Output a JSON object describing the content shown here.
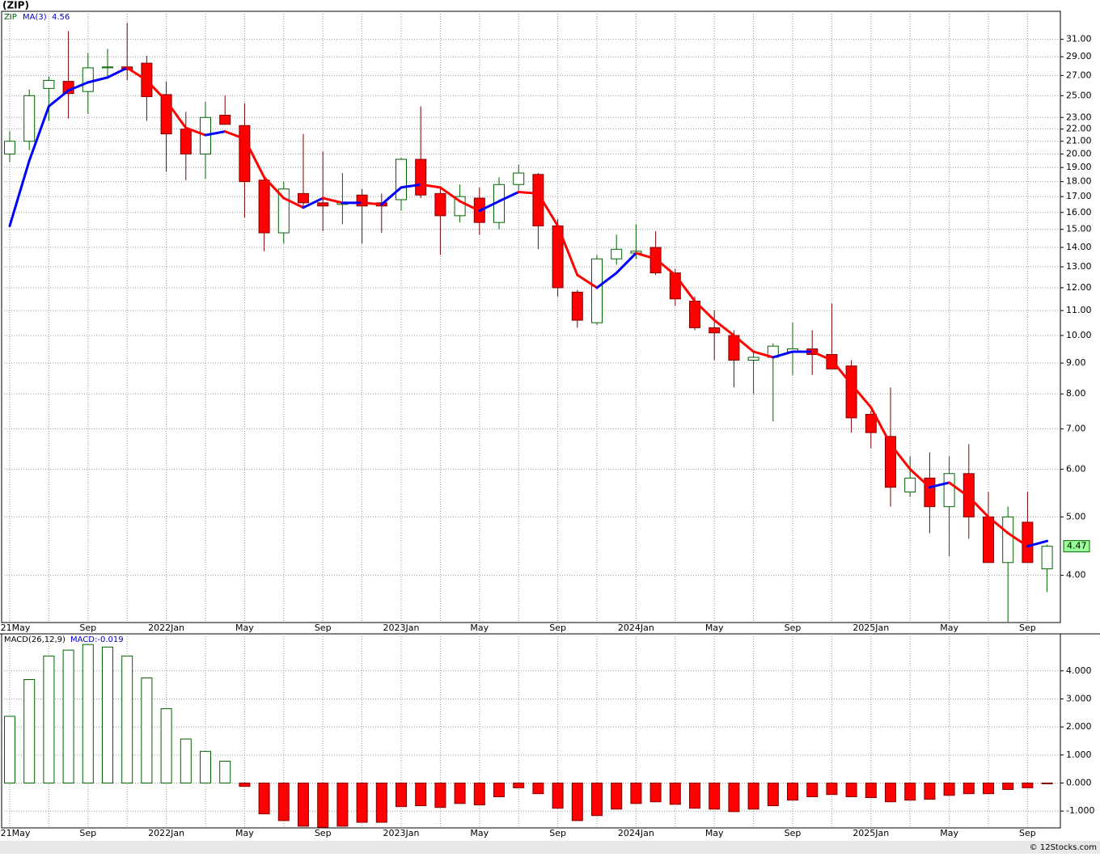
{
  "chart_data": [
    {
      "type": "candlestick",
      "title": "(ZIP)",
      "symbol": "ZIP",
      "ma_name": "MA(3)",
      "ma_current": 4.56,
      "categories": [
        "2021May",
        null,
        null,
        null,
        "Sep",
        null,
        null,
        null,
        "2022Jan",
        null,
        null,
        null,
        "May",
        null,
        null,
        null,
        "Sep",
        null,
        null,
        null,
        "2023Jan",
        null,
        null,
        null,
        "May",
        null,
        null,
        null,
        "Sep",
        null,
        null,
        null,
        "2024Jan",
        null,
        null,
        null,
        "May",
        null,
        null,
        null,
        "Sep",
        null,
        null,
        null,
        "2025Jan",
        null,
        null,
        null,
        "May",
        null,
        null,
        null,
        "Sep",
        null
      ],
      "open": [
        20.0,
        21.0,
        25.7,
        26.4,
        25.4,
        27.8,
        27.9,
        28.3,
        25.1,
        22.0,
        20.0,
        23.2,
        22.3,
        18.1,
        14.8,
        17.2,
        16.6,
        16.5,
        17.1,
        16.6,
        16.8,
        19.6,
        17.2,
        15.8,
        16.9,
        15.4,
        17.8,
        18.5,
        15.2,
        11.8,
        10.5,
        13.4,
        13.7,
        14.0,
        12.7,
        11.4,
        10.3,
        10.0,
        9.1,
        9.2,
        9.4,
        9.5,
        9.3,
        8.9,
        7.4,
        6.8,
        5.5,
        5.8,
        5.2,
        5.9,
        5.0,
        4.2,
        4.9,
        4.1
      ],
      "high": [
        21.8,
        25.6,
        26.9,
        32.0,
        29.4,
        29.9,
        33.0,
        29.1,
        26.4,
        23.5,
        24.4,
        25.0,
        24.3,
        18.3,
        18.0,
        21.6,
        20.2,
        18.6,
        17.5,
        17.2,
        19.7,
        24.0,
        17.6,
        17.8,
        17.6,
        18.3,
        19.2,
        18.6,
        15.6,
        11.9,
        13.6,
        14.7,
        15.3,
        14.9,
        12.9,
        11.6,
        11.0,
        10.2,
        9.4,
        9.7,
        10.5,
        10.2,
        11.3,
        9.1,
        7.5,
        8.2,
        6.3,
        6.4,
        6.3,
        6.6,
        5.5,
        5.2,
        5.5,
        4.5
      ],
      "low": [
        19.4,
        20.3,
        22.7,
        22.9,
        23.3,
        26.8,
        26.5,
        22.7,
        18.7,
        18.1,
        18.2,
        22.4,
        15.7,
        13.8,
        14.2,
        16.3,
        14.9,
        15.3,
        14.2,
        14.8,
        16.1,
        16.9,
        13.6,
        15.4,
        14.7,
        15.0,
        17.4,
        13.9,
        11.6,
        10.3,
        10.4,
        13.1,
        13.4,
        12.6,
        11.2,
        10.2,
        9.1,
        8.2,
        8.0,
        7.2,
        8.6,
        8.6,
        8.8,
        6.9,
        6.5,
        5.2,
        5.4,
        4.7,
        4.3,
        4.6,
        4.2,
        3.35,
        4.2,
        3.75
      ],
      "close": [
        21.0,
        25.0,
        26.5,
        25.2,
        27.8,
        27.9,
        27.6,
        24.9,
        21.6,
        20.0,
        23.0,
        22.4,
        18.0,
        14.8,
        17.5,
        16.6,
        16.4,
        16.6,
        16.4,
        16.4,
        19.6,
        17.1,
        15.8,
        17.0,
        15.4,
        17.8,
        18.6,
        15.2,
        12.0,
        10.6,
        13.4,
        13.9,
        13.8,
        12.7,
        11.5,
        10.3,
        10.1,
        9.1,
        9.2,
        9.6,
        9.5,
        9.3,
        8.8,
        7.3,
        6.9,
        5.6,
        5.8,
        5.2,
        5.9,
        5.0,
        4.2,
        5.0,
        4.2,
        4.47
      ],
      "ma": [
        15.2,
        19.5,
        24.0,
        25.5,
        26.3,
        26.8,
        27.8,
        26.5,
        24.5,
        22.1,
        21.5,
        21.8,
        21.2,
        18.3,
        16.9,
        16.3,
        16.9,
        16.6,
        16.6,
        16.5,
        17.6,
        17.8,
        17.6,
        16.7,
        16.1,
        16.7,
        17.3,
        17.2,
        15.2,
        12.6,
        12.0,
        12.7,
        13.7,
        13.4,
        12.6,
        11.4,
        10.6,
        10.0,
        9.4,
        9.2,
        9.4,
        9.4,
        9.1,
        8.3,
        7.6,
        6.6,
        6.0,
        5.6,
        5.7,
        5.4,
        5.0,
        4.7,
        4.47,
        4.56
      ],
      "last": {
        "value": 4.47,
        "label": "4.47"
      },
      "log_scale": true,
      "ylim": [
        3.34,
        34.5
      ],
      "yticks": [
        {
          "value": 4,
          "label": "4.00"
        },
        {
          "value": 5,
          "label": "5.00"
        },
        {
          "value": 6,
          "label": "6.00"
        },
        {
          "value": 7,
          "label": "7.00"
        },
        {
          "value": 8,
          "label": "8.00"
        },
        {
          "value": 9,
          "label": "9.00"
        },
        {
          "value": 10,
          "label": "10.00"
        },
        {
          "value": 11,
          "label": "11.00"
        },
        {
          "value": 12,
          "label": "12.00"
        },
        {
          "value": 13,
          "label": "13.00"
        },
        {
          "value": 14,
          "label": "14.00"
        },
        {
          "value": 15,
          "label": "15.00"
        },
        {
          "value": 16,
          "label": "16.00"
        },
        {
          "value": 17,
          "label": "17.00"
        },
        {
          "value": 18,
          "label": "18.00"
        },
        {
          "value": 19,
          "label": "19.00"
        },
        {
          "value": 20,
          "label": "20.00"
        },
        {
          "value": 21,
          "label": "21.00"
        },
        {
          "value": 22,
          "label": "22.00"
        },
        {
          "value": 23,
          "label": "23.00"
        },
        {
          "value": 25,
          "label": "25.00"
        },
        {
          "value": 27,
          "label": "27.00"
        },
        {
          "value": 29,
          "label": "29.00"
        },
        {
          "value": 31,
          "label": "31.00"
        }
      ],
      "grid": true,
      "up_color": "#ffffff",
      "up_edge": "#006400",
      "down_color": "#ff0000",
      "down_edge": "#800000",
      "ma_up_color": "#0000ff",
      "ma_down_color": "#ff0000",
      "last_color": "#99ff99"
    },
    {
      "type": "bar",
      "title": "MACD(26,12,9)",
      "current": {
        "value": -0.019,
        "label": "MACD:-0.019"
      },
      "values": [
        2.38,
        3.69,
        4.53,
        4.74,
        4.94,
        4.85,
        4.53,
        3.75,
        2.65,
        1.57,
        1.13,
        0.78,
        -0.12,
        -1.1,
        -1.34,
        -1.54,
        -1.58,
        -1.54,
        -1.4,
        -1.4,
        -0.84,
        -0.81,
        -0.87,
        -0.73,
        -0.78,
        -0.49,
        -0.17,
        -0.38,
        -0.9,
        -1.34,
        -1.16,
        -0.93,
        -0.73,
        -0.67,
        -0.76,
        -0.9,
        -0.93,
        -1.02,
        -0.93,
        -0.81,
        -0.61,
        -0.49,
        -0.41,
        -0.49,
        -0.52,
        -0.67,
        -0.61,
        -0.58,
        -0.44,
        -0.38,
        -0.38,
        -0.23,
        -0.17,
        -0.019
      ],
      "ylim": [
        -1.6,
        5.32
      ],
      "yticks": [
        {
          "value": 4,
          "label": "4.000"
        },
        {
          "value": 3,
          "label": "3.000"
        },
        {
          "value": 2,
          "label": "2.000"
        },
        {
          "value": 1,
          "label": "1.000"
        },
        {
          "value": 0,
          "label": "0.000"
        },
        {
          "value": -1,
          "label": "-1.000"
        }
      ],
      "grid": true,
      "pos_color": "#ffffff",
      "pos_edge": "#006400",
      "neg_color": "#ff0000",
      "neg_edge": "#800000"
    }
  ],
  "footer": "© 12Stocks.com"
}
